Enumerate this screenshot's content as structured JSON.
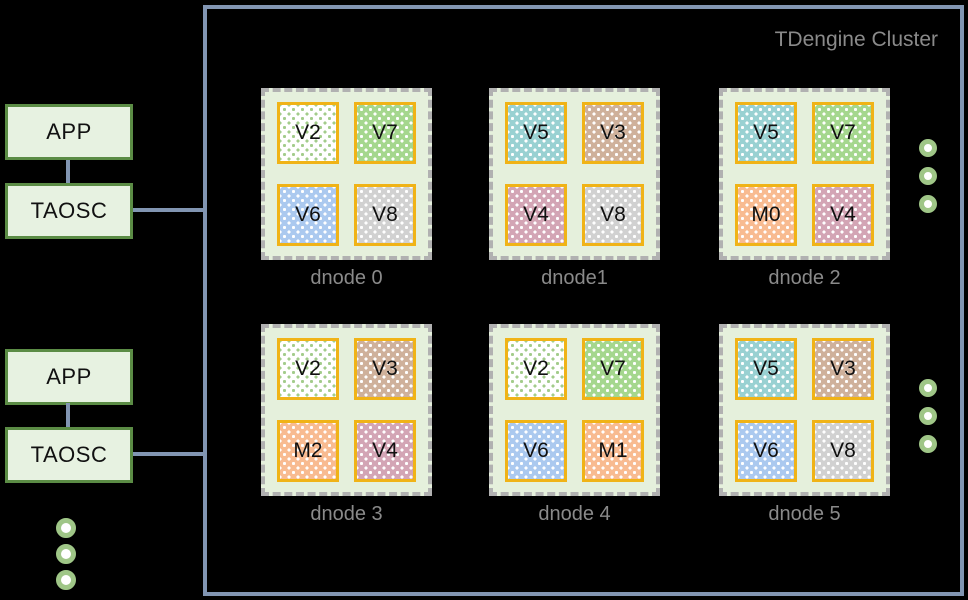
{
  "diagram": {
    "cluster_title": "TDengine Cluster",
    "clients": [
      {
        "app": "APP",
        "taosc": "TAOSC"
      },
      {
        "app": "APP",
        "taosc": "TAOSC"
      }
    ],
    "dnodes": [
      {
        "label": "dnode 0",
        "vnodes": [
          "V2",
          "V7",
          "V6",
          "V8"
        ]
      },
      {
        "label": "dnode1",
        "vnodes": [
          "V5",
          "V3",
          "V4",
          "V8"
        ]
      },
      {
        "label": "dnode 2",
        "vnodes": [
          "V5",
          "V7",
          "M0",
          "V4"
        ]
      },
      {
        "label": "dnode 3",
        "vnodes": [
          "V2",
          "V3",
          "M2",
          "V4"
        ]
      },
      {
        "label": "dnode 4",
        "vnodes": [
          "V2",
          "V7",
          "V6",
          "M1"
        ]
      },
      {
        "label": "dnode 5",
        "vnodes": [
          "V5",
          "V3",
          "V6",
          "V8"
        ]
      }
    ],
    "colors": {
      "cluster_border": "#8195b2",
      "connector": "#8195b2",
      "client_box_fill": "#e7f2e1",
      "client_box_border": "#5b8c45",
      "dnode_fill": "#e5f0dc",
      "dnode_border": "#b1b1b1",
      "vnode_border": "#f0b317",
      "label_gray": "#8a8a8a",
      "ellipsis_ring": "#9fc687",
      "vnode_fills": {
        "V2": {
          "bg": "#ffffff",
          "dot": "#a3cc8b"
        },
        "V3": {
          "bg": "#cfb19b",
          "dot": "#ffffff"
        },
        "V4": {
          "bg": "#d3a5b5",
          "dot": "#ffffff"
        },
        "V5": {
          "bg": "#99d1d2",
          "dot": "#ffffff"
        },
        "V6": {
          "bg": "#abc9ef",
          "dot": "#ffffff"
        },
        "V7": {
          "bg": "#a5d78e",
          "dot": "#ffffff"
        },
        "V8": {
          "bg": "#d1d1d1",
          "dot": "#ffffff"
        },
        "M": {
          "bg": "#f8bb91",
          "dot": "#ffffff"
        }
      }
    }
  }
}
